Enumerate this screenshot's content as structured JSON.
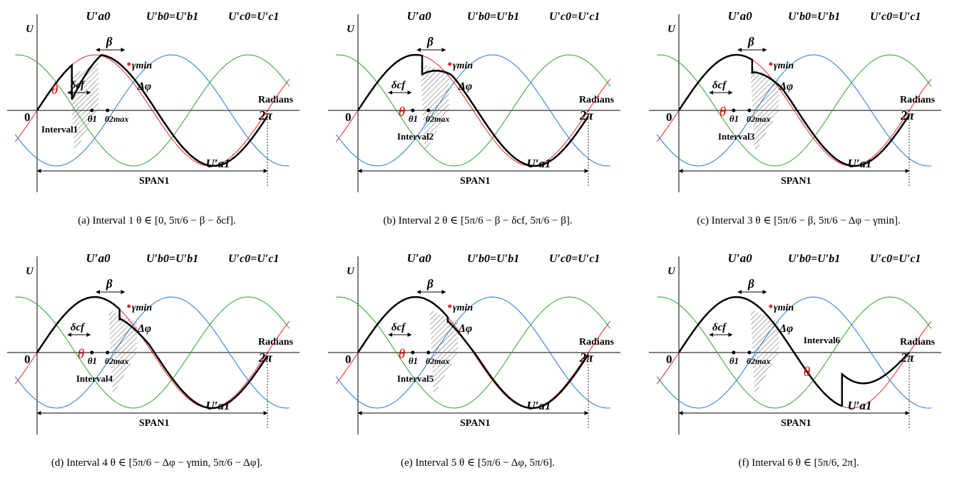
{
  "colors": {
    "phase_a": "#e8262a",
    "phase_b": "#1f77d0",
    "phase_c": "#2ca02c",
    "envelope": "#000000",
    "theta": "#e00000"
  },
  "common_labels": {
    "y_axis": "U",
    "origin": "0",
    "two_pi": "2π",
    "radians": "Radians",
    "span": "SPAN1",
    "ua0": "U′a0",
    "ub0_ub1": "U′b0=U′b1",
    "uc0_uc1": "U′c0=U′c1",
    "ua1": "U′a1",
    "beta": "β",
    "delta_cf": "δcf",
    "gamma_min": "γmin",
    "delta_phi": "Δφ",
    "theta": "θ",
    "theta1": "θ1",
    "theta2max": "θ2max"
  },
  "panels": [
    {
      "id": "a",
      "interval_label": "Interval1",
      "caption": "(a) Interval 1 θ ∈ [0, 5π/6 − β − δcf]."
    },
    {
      "id": "b",
      "interval_label": "Interval2",
      "caption": "(b) Interval 2 θ ∈ [5π/6 − β − δcf, 5π/6 − β]."
    },
    {
      "id": "c",
      "interval_label": "Interval3",
      "caption": "(c) Interval 3 θ ∈ [5π/6 − β, 5π/6 − Δφ − γmin]."
    },
    {
      "id": "d",
      "interval_label": "Interval4",
      "caption": "(d) Interval 4 θ ∈ [5π/6 − Δφ − γmin, 5π/6 − Δφ]."
    },
    {
      "id": "e",
      "interval_label": "Interval5",
      "caption": "(e) Interval 5 θ ∈ [5π/6 − Δφ, 5π/6]."
    },
    {
      "id": "f",
      "interval_label": "Interval6",
      "caption": "(f) Interval 6 θ ∈ [5π/6, 2π]."
    }
  ]
}
